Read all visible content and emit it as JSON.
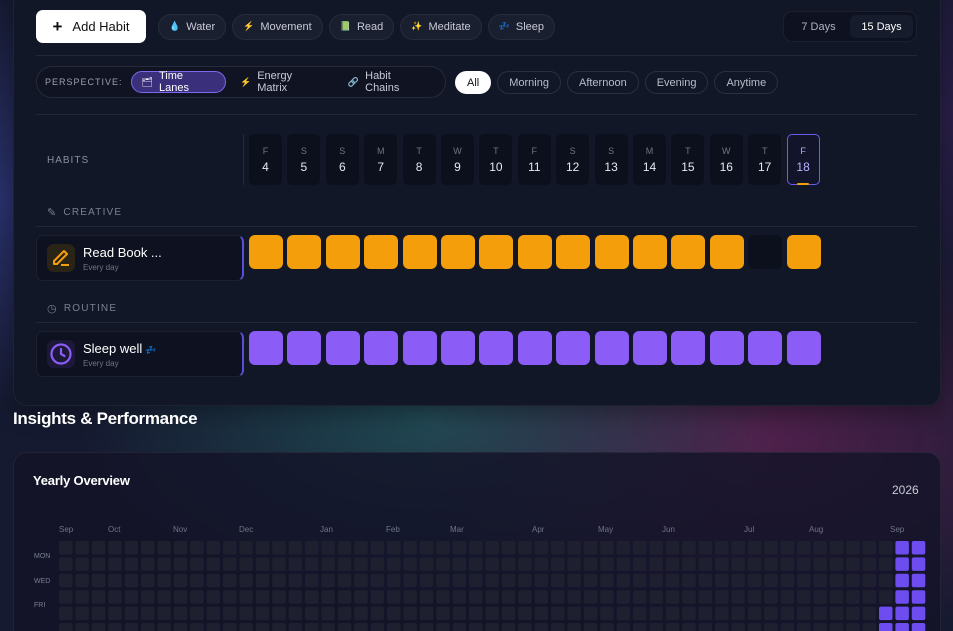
{
  "toolbar": {
    "add_habit_label": "Add Habit",
    "filters": [
      {
        "label": "Water",
        "icon": "droplet-icon",
        "glyph": "💧"
      },
      {
        "label": "Movement",
        "icon": "lightning-icon",
        "glyph": "⚡"
      },
      {
        "label": "Read",
        "icon": "book-icon",
        "glyph": "📗"
      },
      {
        "label": "Meditate",
        "icon": "sparkle-icon",
        "glyph": "✨"
      },
      {
        "label": "Sleep",
        "icon": "zzz-icon",
        "glyph": "💤"
      }
    ],
    "range_options": [
      "7 Days",
      "15 Days"
    ],
    "range_selected": "15 Days"
  },
  "perspective": {
    "label": "PERSPECTIVE:",
    "options": [
      {
        "label": "Time Lanes",
        "icon": "lanes-icon",
        "glyph": "🗂"
      },
      {
        "label": "Energy Matrix",
        "icon": "lightning-icon",
        "glyph": "⚡"
      },
      {
        "label": "Habit Chains",
        "icon": "chain-icon",
        "glyph": "🔗"
      }
    ],
    "selected": "Time Lanes"
  },
  "time_of_day": {
    "options": [
      "All",
      "Morning",
      "Afternoon",
      "Evening",
      "Anytime"
    ],
    "selected": "All"
  },
  "grid": {
    "habits_header": "HABITS",
    "days": [
      {
        "letter": "F",
        "num": "4"
      },
      {
        "letter": "S",
        "num": "5"
      },
      {
        "letter": "S",
        "num": "6"
      },
      {
        "letter": "M",
        "num": "7"
      },
      {
        "letter": "T",
        "num": "8"
      },
      {
        "letter": "W",
        "num": "9"
      },
      {
        "letter": "T",
        "num": "10"
      },
      {
        "letter": "F",
        "num": "11"
      },
      {
        "letter": "S",
        "num": "12"
      },
      {
        "letter": "S",
        "num": "13"
      },
      {
        "letter": "M",
        "num": "14"
      },
      {
        "letter": "T",
        "num": "15"
      },
      {
        "letter": "W",
        "num": "16"
      },
      {
        "letter": "T",
        "num": "17"
      },
      {
        "letter": "F",
        "num": "18"
      }
    ],
    "today_index": 14,
    "groups": [
      {
        "label": "CREATIVE",
        "icon": "pencil-icon",
        "habits": [
          {
            "name": "Read Book ...",
            "frequency": "Every day",
            "icon": "pencil-icon",
            "color": "#f59e0b",
            "completed": [
              true,
              true,
              true,
              true,
              true,
              true,
              true,
              true,
              true,
              true,
              true,
              true,
              true,
              false,
              true
            ]
          }
        ]
      },
      {
        "label": "ROUTINE",
        "icon": "clock-icon",
        "habits": [
          {
            "name": "Sleep well",
            "badge": "💤",
            "frequency": "Every day",
            "icon": "clock-icon",
            "color": "#8b5cf6",
            "completed": [
              true,
              true,
              true,
              true,
              true,
              true,
              true,
              true,
              true,
              true,
              true,
              true,
              true,
              true,
              true
            ]
          }
        ]
      }
    ]
  },
  "insights": {
    "title": "Insights & Performance",
    "yearly": {
      "title": "Yearly Overview",
      "year": "2026",
      "months": [
        "Sep",
        "Oct",
        "Nov",
        "Dec",
        "Jan",
        "Feb",
        "Mar",
        "Apr",
        "May",
        "Jun",
        "Jul",
        "Aug",
        "Sep"
      ],
      "weekday_labels": [
        "MON",
        "WED",
        "FRI"
      ],
      "active_color": "#6d4df0",
      "empty_color": "#1e2030"
    }
  }
}
